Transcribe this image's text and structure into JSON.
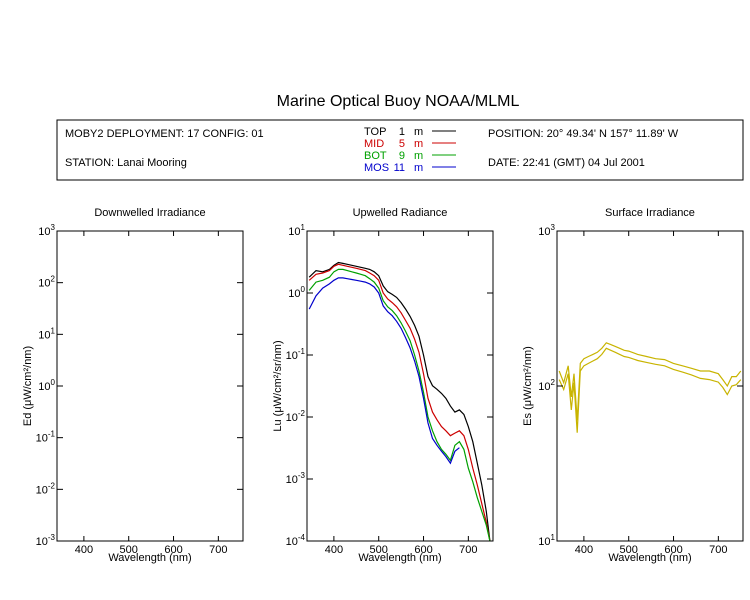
{
  "title": "Marine Optical Buoy NOAA/MLML",
  "header": {
    "deployment": "MOBY2 DEPLOYMENT: 17 CONFIG: 01",
    "station": "STATION: Lanai Mooring",
    "position": "POSITION: 20° 49.34' N   157° 11.89' W",
    "date": "DATE: 22:41 (GMT) 04 Jul 2001",
    "legend": [
      {
        "label": "TOP",
        "depth": "1",
        "unit": "m",
        "color": "#000000"
      },
      {
        "label": "MID",
        "depth": "5",
        "unit": "m",
        "color": "#cc0000"
      },
      {
        "label": "BOT",
        "depth": "9",
        "unit": "m",
        "color": "#00a000"
      },
      {
        "label": "MOS",
        "depth": "11",
        "unit": "m",
        "color": "#0000cc"
      }
    ]
  },
  "chart_data": [
    {
      "type": "line",
      "title": "Downwelled Irradiance",
      "xlabel": "Wavelength (nm)",
      "ylabel": "Ed  (μW/cm²/nm)",
      "xlim": [
        340,
        755
      ],
      "xticks": [
        "400",
        "500",
        "600",
        "700"
      ],
      "log_y": true,
      "ylim": [
        0.001,
        1000
      ],
      "yticks": [
        {
          "base": "10",
          "exp": "-3"
        },
        {
          "base": "10",
          "exp": "-2"
        },
        {
          "base": "10",
          "exp": "-1"
        },
        {
          "base": "10",
          "exp": "0"
        },
        {
          "base": "10",
          "exp": "1"
        },
        {
          "base": "10",
          "exp": "2"
        },
        {
          "base": "10",
          "exp": "3"
        }
      ],
      "series": []
    },
    {
      "type": "line",
      "title": "Upwelled Radiance",
      "xlabel": "Wavelength (nm)",
      "ylabel": "Lu  (μW/cm²/sr/nm)",
      "xlim": [
        340,
        755
      ],
      "xticks": [
        "400",
        "500",
        "600",
        "700"
      ],
      "log_y": true,
      "ylim": [
        0.0001,
        10
      ],
      "yticks": [
        {
          "base": "10",
          "exp": "-4"
        },
        {
          "base": "10",
          "exp": "-3"
        },
        {
          "base": "10",
          "exp": "-2"
        },
        {
          "base": "10",
          "exp": "-1"
        },
        {
          "base": "10",
          "exp": "0"
        },
        {
          "base": "10",
          "exp": "1"
        }
      ],
      "series": [
        {
          "color": "#000000",
          "x": [
            345,
            360,
            375,
            390,
            400,
            410,
            420,
            430,
            440,
            450,
            460,
            470,
            480,
            490,
            500,
            510,
            520,
            530,
            540,
            550,
            560,
            570,
            580,
            590,
            600,
            610,
            620,
            630,
            640,
            650,
            660,
            670,
            680,
            690,
            700,
            710,
            720,
            730,
            740,
            748
          ],
          "y": [
            1.8,
            2.3,
            2.2,
            2.4,
            2.8,
            3.1,
            3.0,
            2.9,
            2.8,
            2.7,
            2.6,
            2.5,
            2.4,
            2.2,
            1.9,
            1.3,
            1.05,
            0.95,
            0.85,
            0.7,
            0.55,
            0.42,
            0.3,
            0.2,
            0.1,
            0.045,
            0.032,
            0.028,
            0.024,
            0.02,
            0.015,
            0.012,
            0.013,
            0.011,
            0.007,
            0.004,
            0.0018,
            0.0008,
            0.0003,
            0.0001
          ]
        },
        {
          "color": "#cc0000",
          "x": [
            345,
            360,
            375,
            390,
            400,
            410,
            420,
            430,
            440,
            450,
            460,
            470,
            480,
            490,
            500,
            510,
            520,
            530,
            540,
            550,
            560,
            570,
            580,
            590,
            600,
            610,
            620,
            630,
            640,
            650,
            660,
            670,
            680,
            690,
            700,
            710,
            720,
            730,
            740,
            748
          ],
          "y": [
            1.6,
            2.0,
            2.1,
            2.3,
            2.7,
            2.9,
            2.8,
            2.7,
            2.6,
            2.5,
            2.4,
            2.3,
            2.1,
            1.9,
            1.6,
            1.0,
            0.8,
            0.7,
            0.6,
            0.48,
            0.36,
            0.27,
            0.18,
            0.11,
            0.05,
            0.02,
            0.012,
            0.009,
            0.007,
            0.006,
            0.005,
            0.0055,
            0.006,
            0.005,
            0.003,
            0.0015,
            0.0008,
            0.0004,
            0.0002,
            0.0001
          ]
        },
        {
          "color": "#00a000",
          "x": [
            345,
            360,
            375,
            390,
            400,
            410,
            420,
            430,
            440,
            450,
            460,
            470,
            480,
            490,
            500,
            510,
            520,
            530,
            540,
            550,
            560,
            570,
            580,
            590,
            600,
            610,
            620,
            630,
            640,
            650,
            660,
            670,
            680,
            690,
            700,
            710,
            720,
            730,
            740,
            748
          ],
          "y": [
            1.1,
            1.5,
            1.6,
            1.8,
            2.2,
            2.4,
            2.4,
            2.3,
            2.2,
            2.1,
            2.0,
            1.9,
            1.7,
            1.5,
            1.2,
            0.75,
            0.6,
            0.52,
            0.43,
            0.33,
            0.24,
            0.17,
            0.1,
            0.055,
            0.025,
            0.01,
            0.006,
            0.004,
            0.003,
            0.0025,
            0.002,
            0.0035,
            0.004,
            0.003,
            0.0015,
            0.0009,
            0.0005,
            0.0003,
            0.00018,
            0.0001
          ]
        },
        {
          "color": "#0000cc",
          "x": [
            345,
            360,
            375,
            390,
            400,
            410,
            420,
            430,
            440,
            450,
            460,
            470,
            480,
            490,
            500,
            510,
            520,
            530,
            540,
            550,
            560,
            570,
            580,
            590,
            600,
            610,
            620,
            630,
            640,
            650,
            660,
            670,
            680
          ],
          "y": [
            0.55,
            0.9,
            1.2,
            1.4,
            1.6,
            1.75,
            1.75,
            1.7,
            1.65,
            1.6,
            1.55,
            1.5,
            1.4,
            1.25,
            1.0,
            0.62,
            0.5,
            0.43,
            0.35,
            0.27,
            0.19,
            0.13,
            0.08,
            0.045,
            0.02,
            0.008,
            0.0045,
            0.0035,
            0.0028,
            0.0023,
            0.0018,
            0.0028,
            0.0032
          ]
        }
      ]
    },
    {
      "type": "line",
      "title": "Surface Irradiance",
      "xlabel": "Wavelength (nm)",
      "ylabel": "Es  (μW/cm²/nm)",
      "xlim": [
        340,
        755
      ],
      "xticks": [
        "400",
        "500",
        "600",
        "700"
      ],
      "log_y": true,
      "ylim": [
        10,
        1000
      ],
      "yticks": [
        {
          "base": "10",
          "exp": "1"
        },
        {
          "base": "10",
          "exp": "2"
        },
        {
          "base": "10",
          "exp": "3"
        }
      ],
      "series": [
        {
          "color": "#c8b400",
          "x": [
            345,
            355,
            365,
            372,
            378,
            385,
            392,
            400,
            410,
            420,
            430,
            440,
            450,
            460,
            470,
            480,
            490,
            500,
            520,
            540,
            560,
            580,
            600,
            620,
            640,
            660,
            680,
            700,
            710,
            720,
            730,
            740,
            750
          ],
          "y": [
            125,
            105,
            135,
            85,
            120,
            60,
            140,
            150,
            155,
            160,
            165,
            175,
            190,
            185,
            180,
            175,
            170,
            168,
            160,
            155,
            150,
            148,
            140,
            135,
            130,
            125,
            125,
            120,
            110,
            100,
            115,
            115,
            125
          ]
        },
        {
          "color": "#c8b400",
          "x": [
            345,
            355,
            365,
            372,
            378,
            385,
            392,
            400,
            410,
            420,
            430,
            440,
            450,
            460,
            470,
            480,
            490,
            500,
            520,
            540,
            560,
            580,
            600,
            620,
            640,
            660,
            680,
            700,
            710,
            720,
            730,
            740,
            750
          ],
          "y": [
            110,
            95,
            120,
            70,
            105,
            50,
            125,
            135,
            140,
            145,
            150,
            160,
            175,
            170,
            165,
            160,
            155,
            153,
            146,
            142,
            138,
            135,
            128,
            123,
            118,
            112,
            110,
            106,
            98,
            88,
            100,
            102,
            110
          ]
        }
      ]
    }
  ]
}
